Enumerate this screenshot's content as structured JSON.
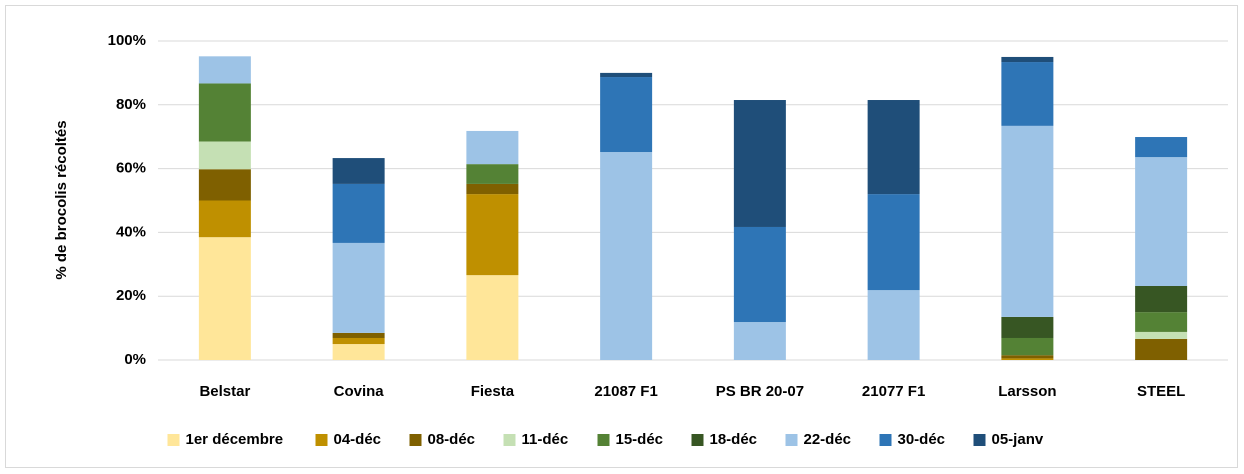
{
  "chart_data": {
    "type": "stacked_bar",
    "ylabel": "% de brocolis récoltés",
    "categories": [
      "Belstar",
      "Covina",
      "Fiesta",
      "21087 F1",
      "PS BR 20-07",
      "21077 F1",
      "Larsson",
      "STEEL"
    ],
    "series": [
      {
        "name": "1er décembre",
        "color": "#ffe699",
        "values": [
          38.5,
          5.0,
          26.6,
          0,
          0,
          0,
          0,
          0
        ]
      },
      {
        "name": "04-déc",
        "color": "#bf9000",
        "values": [
          11.5,
          1.9,
          25.4,
          0,
          0,
          0,
          0.5,
          0
        ]
      },
      {
        "name": "08-déc",
        "color": "#7f6000",
        "values": [
          9.8,
          1.6,
          3.2,
          0,
          0,
          0,
          1.0,
          6.6
        ]
      },
      {
        "name": "11-déc",
        "color": "#c5e0b4",
        "values": [
          8.7,
          0,
          0,
          0,
          0,
          0,
          0,
          2.2
        ]
      },
      {
        "name": "15-déc",
        "color": "#548235",
        "values": [
          18.2,
          0,
          6.2,
          0,
          0,
          0,
          5.4,
          6.2
        ]
      },
      {
        "name": "18-déc",
        "color": "#375623",
        "values": [
          0,
          0,
          0,
          0,
          0,
          0,
          6.6,
          8.2
        ]
      },
      {
        "name": "22-déc",
        "color": "#9dc3e6",
        "values": [
          8.5,
          28.2,
          10.4,
          65.2,
          11.9,
          21.9,
          59.9,
          40.4
        ]
      },
      {
        "name": "30-déc",
        "color": "#2e75b6",
        "values": [
          0,
          18.5,
          0,
          23.5,
          29.8,
          30.1,
          20.0,
          6.3
        ]
      },
      {
        "name": "05-janv",
        "color": "#1f4e79",
        "values": [
          0,
          8.1,
          0,
          1.3,
          39.8,
          29.5,
          1.6,
          0
        ]
      }
    ],
    "ylim": [
      0,
      100
    ],
    "yticks": [
      {
        "value": 0,
        "label": "0%"
      },
      {
        "value": 20,
        "label": "20%"
      },
      {
        "value": 40,
        "label": "40%"
      },
      {
        "value": 60,
        "label": "60%"
      },
      {
        "value": 80,
        "label": "80%"
      },
      {
        "value": 100,
        "label": "100%"
      }
    ],
    "grid": true,
    "legend": "bottom"
  }
}
